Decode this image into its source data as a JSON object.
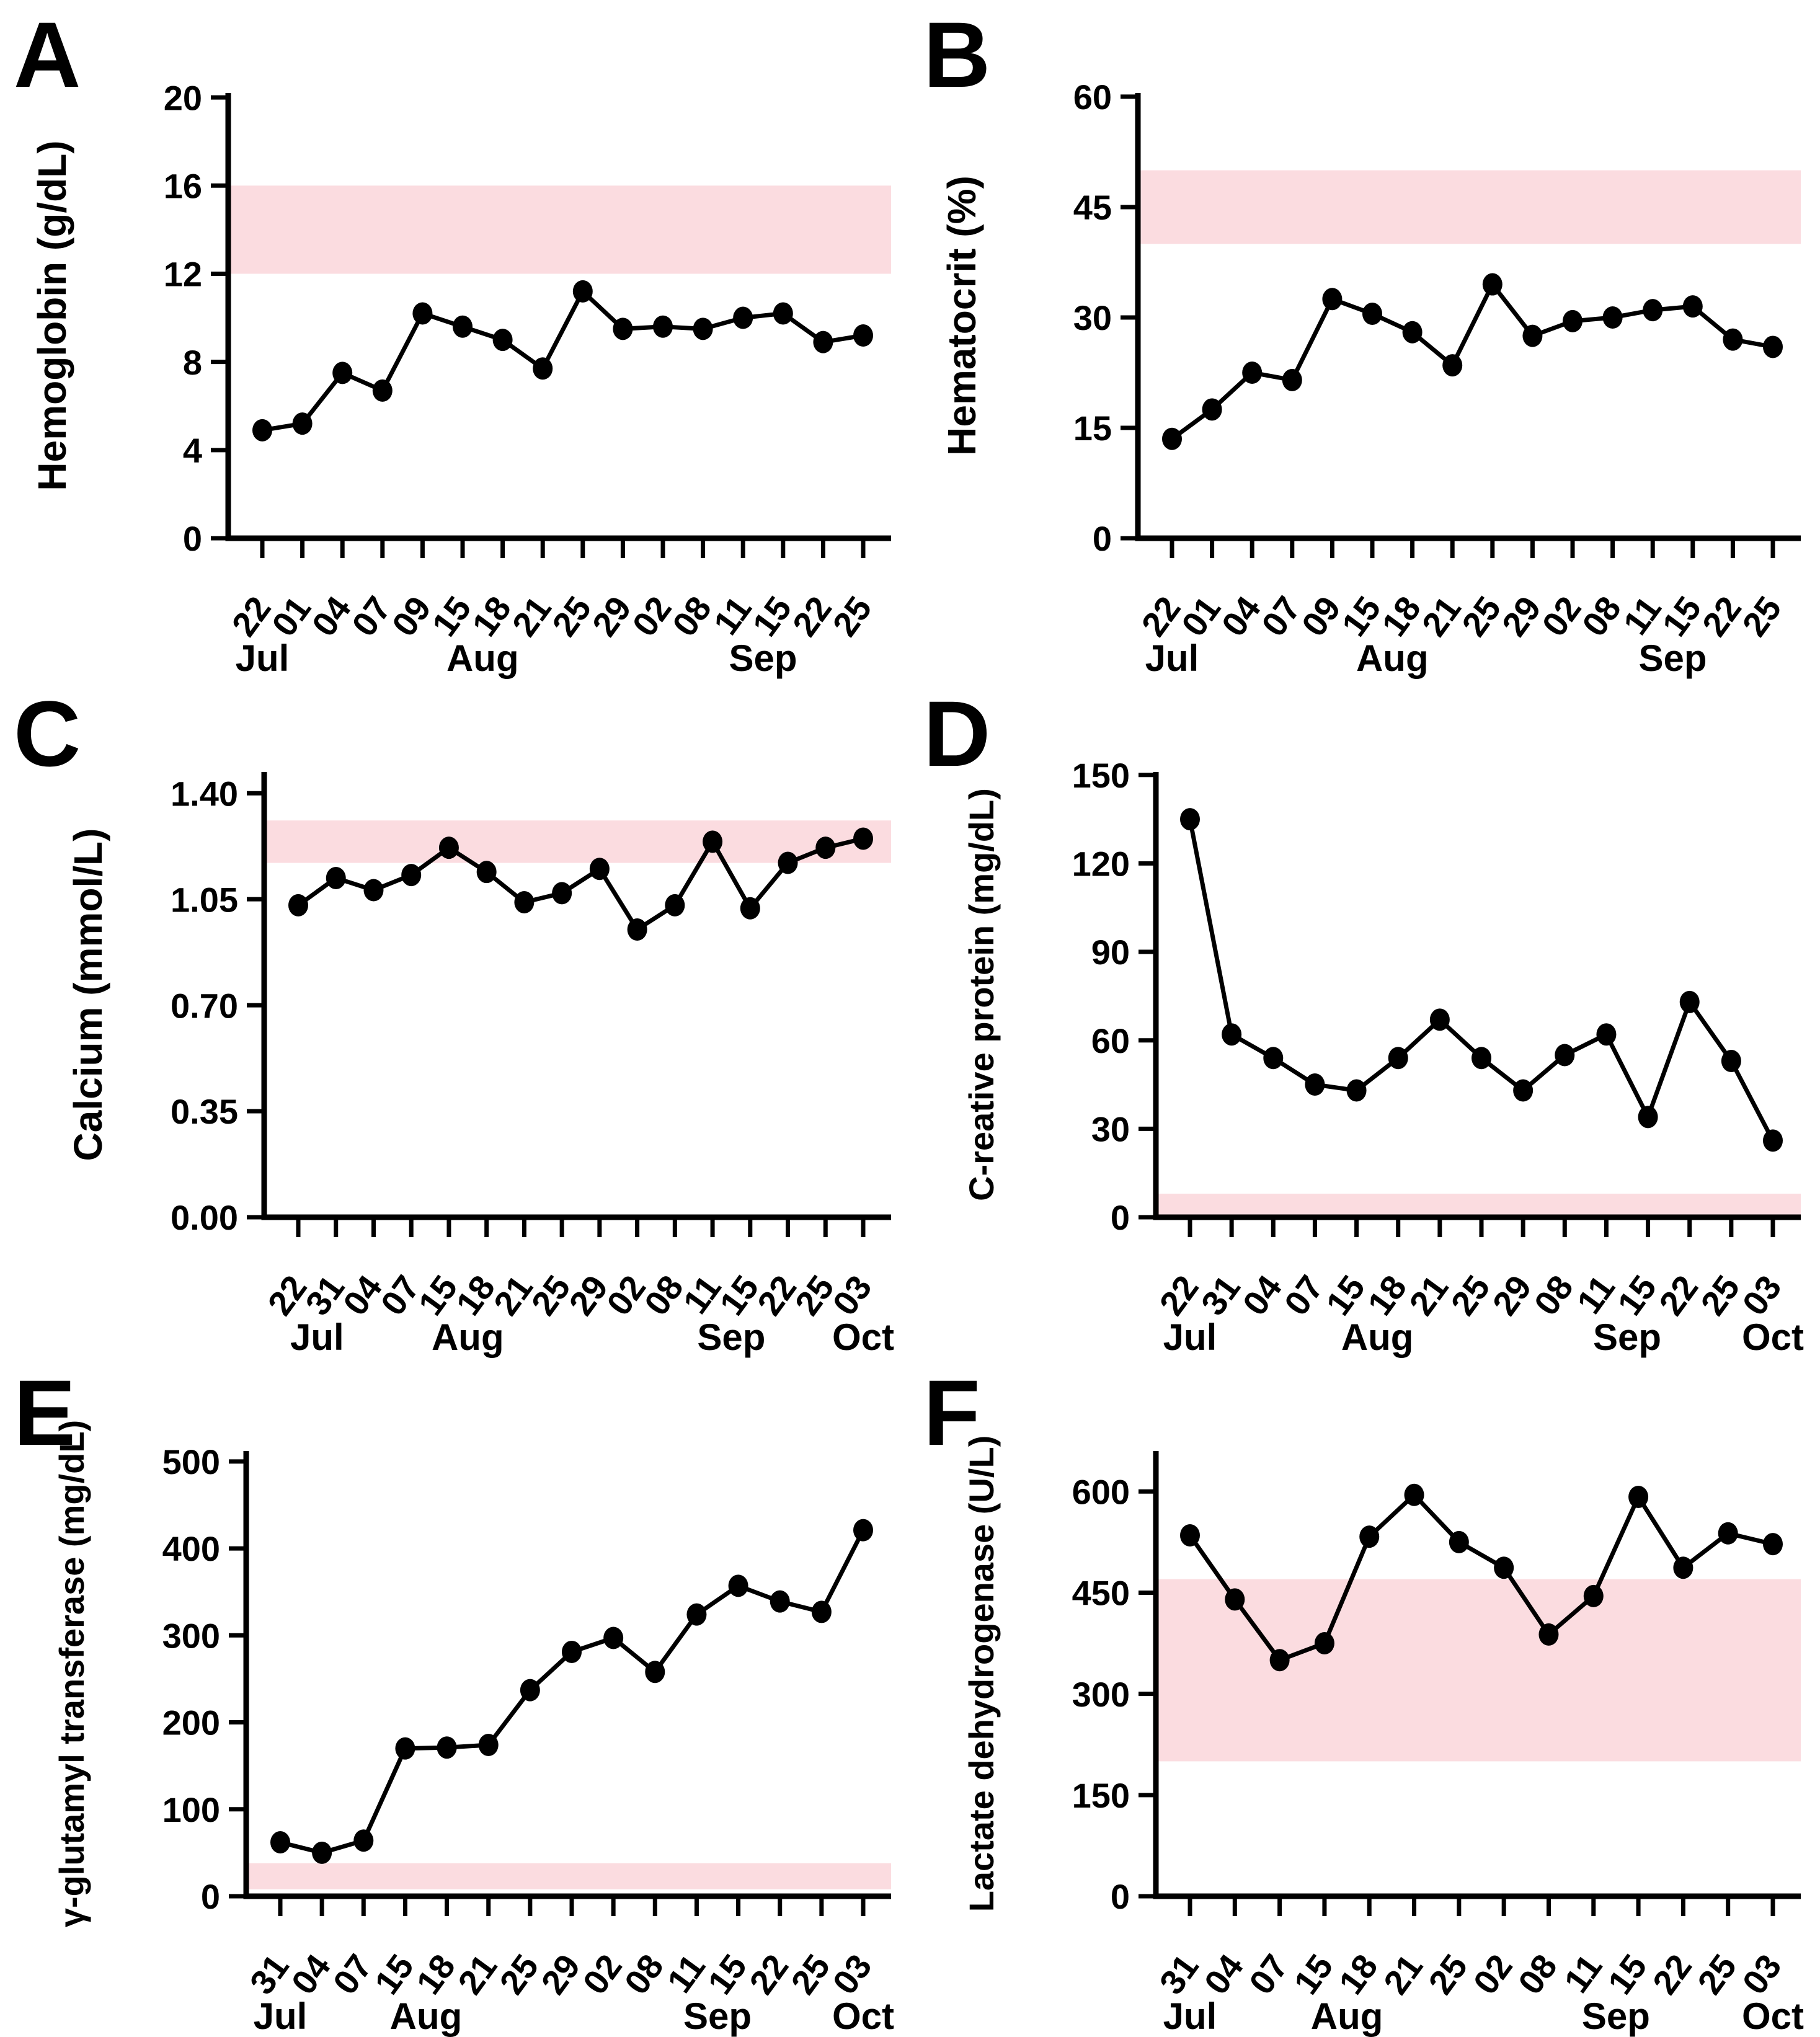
{
  "figure": {
    "description": "Six-panel laboratory trend figure with normal-range reference bands",
    "background": "#FFFFFF"
  },
  "style": {
    "band_color": "#FBDCE0",
    "line_color": "#000000",
    "marker_color": "#000000",
    "axis_color": "#000000",
    "text_color": "#000000"
  },
  "chart_data": [
    {
      "letter": "A",
      "type": "line",
      "ylabel": "Hemoglobin (g/dL)",
      "categories": [
        "22",
        "01",
        "04",
        "07",
        "09",
        "15",
        "18",
        "21",
        "25",
        "29",
        "02",
        "08",
        "11",
        "15",
        "22",
        "25"
      ],
      "values": [
        4.9,
        5.2,
        7.5,
        6.7,
        10.2,
        9.6,
        9.0,
        7.7,
        11.2,
        9.5,
        9.6,
        9.5,
        10.0,
        10.2,
        8.9,
        9.2
      ],
      "yticks": [
        0,
        4,
        8,
        12,
        16,
        20
      ],
      "ytick_labels": [
        "0",
        "4",
        "8",
        "12",
        "16",
        "20"
      ],
      "ylim": [
        0,
        20.2
      ],
      "reference_band": {
        "low": 12,
        "high": 16
      },
      "months": [
        {
          "label": "Jul",
          "at": 0
        },
        {
          "label": "Aug",
          "at": 5.5
        },
        {
          "label": "Sep",
          "at": 12.5
        }
      ],
      "legend": "none",
      "grid": false
    },
    {
      "letter": "B",
      "type": "line",
      "ylabel": "Hematocrit (%)",
      "categories": [
        "22",
        "01",
        "04",
        "07",
        "09",
        "15",
        "18",
        "21",
        "25",
        "29",
        "02",
        "08",
        "11",
        "15",
        "22",
        "25"
      ],
      "values": [
        13.5,
        17.5,
        22.5,
        21.5,
        32.5,
        30.5,
        28,
        23.5,
        34.5,
        27.5,
        29.5,
        30,
        31,
        31.5,
        27,
        26
      ],
      "yticks": [
        0,
        15,
        30,
        45,
        60
      ],
      "ytick_labels": [
        "0",
        "15",
        "30",
        "45",
        "60"
      ],
      "ylim": [
        0,
        60.5
      ],
      "reference_band": {
        "low": 40,
        "high": 50
      },
      "months": [
        {
          "label": "Jul",
          "at": 0
        },
        {
          "label": "Aug",
          "at": 5.5
        },
        {
          "label": "Sep",
          "at": 12.5
        }
      ],
      "legend": "none",
      "grid": false
    },
    {
      "letter": "C",
      "type": "line",
      "ylabel": "Calcium (mmol/L)",
      "categories": [
        "22",
        "31",
        "04",
        "07",
        "15",
        "18",
        "21",
        "25",
        "29",
        "02",
        "08",
        "11",
        "15",
        "22",
        "25",
        "03"
      ],
      "values": [
        1.03,
        1.12,
        1.08,
        1.13,
        1.22,
        1.14,
        1.04,
        1.07,
        1.15,
        0.95,
        1.03,
        1.24,
        1.02,
        1.17,
        1.22,
        1.25
      ],
      "yticks": [
        0,
        0.35,
        0.7,
        1.05,
        1.4
      ],
      "ytick_labels": [
        "0.00",
        "0.35",
        "0.70",
        "1.05",
        "1.40"
      ],
      "ylim": [
        0,
        1.47
      ],
      "reference_band": {
        "low": 1.17,
        "high": 1.31
      },
      "months": [
        {
          "label": "Jul",
          "at": 0.5
        },
        {
          "label": "Aug",
          "at": 4.5
        },
        {
          "label": "Sep",
          "at": 11.5
        },
        {
          "label": "Oct",
          "at": 15
        }
      ],
      "legend": "none",
      "grid": false
    },
    {
      "letter": "D",
      "type": "line",
      "ylabel": "C-reative protein (mg/dL)",
      "categories": [
        "22",
        "31",
        "04",
        "07",
        "15",
        "18",
        "21",
        "25",
        "29",
        "08",
        "11",
        "15",
        "22",
        "25",
        "03"
      ],
      "values": [
        135,
        62,
        54,
        45,
        43,
        54,
        67,
        54,
        43,
        55,
        62,
        34,
        73,
        53,
        26
      ],
      "yticks": [
        0,
        30,
        60,
        90,
        120,
        150
      ],
      "ytick_labels": [
        "0",
        "30",
        "60",
        "90",
        "120",
        "150"
      ],
      "ylim": [
        0,
        151
      ],
      "reference_band": {
        "low": 0,
        "high": 8
      },
      "months": [
        {
          "label": "Jul",
          "at": 0
        },
        {
          "label": "Aug",
          "at": 4.5
        },
        {
          "label": "Sep",
          "at": 10.5
        },
        {
          "label": "Oct",
          "at": 14
        }
      ],
      "legend": "none",
      "grid": false
    },
    {
      "letter": "E",
      "type": "line",
      "ylabel": "γ-glutamyl transferase (mg/dL)",
      "categories": [
        "31",
        "04",
        "07",
        "15",
        "18",
        "21",
        "25",
        "29",
        "02",
        "08",
        "11",
        "15",
        "22",
        "25",
        "03"
      ],
      "values": [
        62,
        50,
        64,
        170,
        171,
        174,
        237,
        281,
        297,
        258,
        324,
        357,
        339,
        327,
        421
      ],
      "yticks": [
        0,
        100,
        200,
        300,
        400,
        500
      ],
      "ytick_labels": [
        "0",
        "100",
        "200",
        "300",
        "400",
        "500"
      ],
      "ylim": [
        0,
        512
      ],
      "reference_band": {
        "low": 8,
        "high": 38
      },
      "months": [
        {
          "label": "Jul",
          "at": 0
        },
        {
          "label": "Aug",
          "at": 3.5
        },
        {
          "label": "Sep",
          "at": 10.5
        },
        {
          "label": "Oct",
          "at": 14
        }
      ],
      "legend": "none",
      "grid": false
    },
    {
      "letter": "F",
      "type": "line",
      "ylabel": "Lactate dehydrogenase (U/L)",
      "categories": [
        "31",
        "04",
        "07",
        "15",
        "18",
        "21",
        "25",
        "02",
        "08",
        "11",
        "15",
        "22",
        "25",
        "03"
      ],
      "values": [
        535,
        440,
        350,
        375,
        533,
        595,
        525,
        487,
        388,
        445,
        592,
        487,
        538,
        522
      ],
      "yticks": [
        0,
        150,
        300,
        450,
        600
      ],
      "ytick_labels": [
        "0",
        "150",
        "300",
        "450",
        "600"
      ],
      "ylim": [
        0,
        660
      ],
      "reference_band": {
        "low": 200,
        "high": 470
      },
      "months": [
        {
          "label": "Jul",
          "at": 0
        },
        {
          "label": "Aug",
          "at": 3.5
        },
        {
          "label": "Sep",
          "at": 9.5
        },
        {
          "label": "Oct",
          "at": 13
        }
      ],
      "legend": "none",
      "grid": false
    }
  ]
}
